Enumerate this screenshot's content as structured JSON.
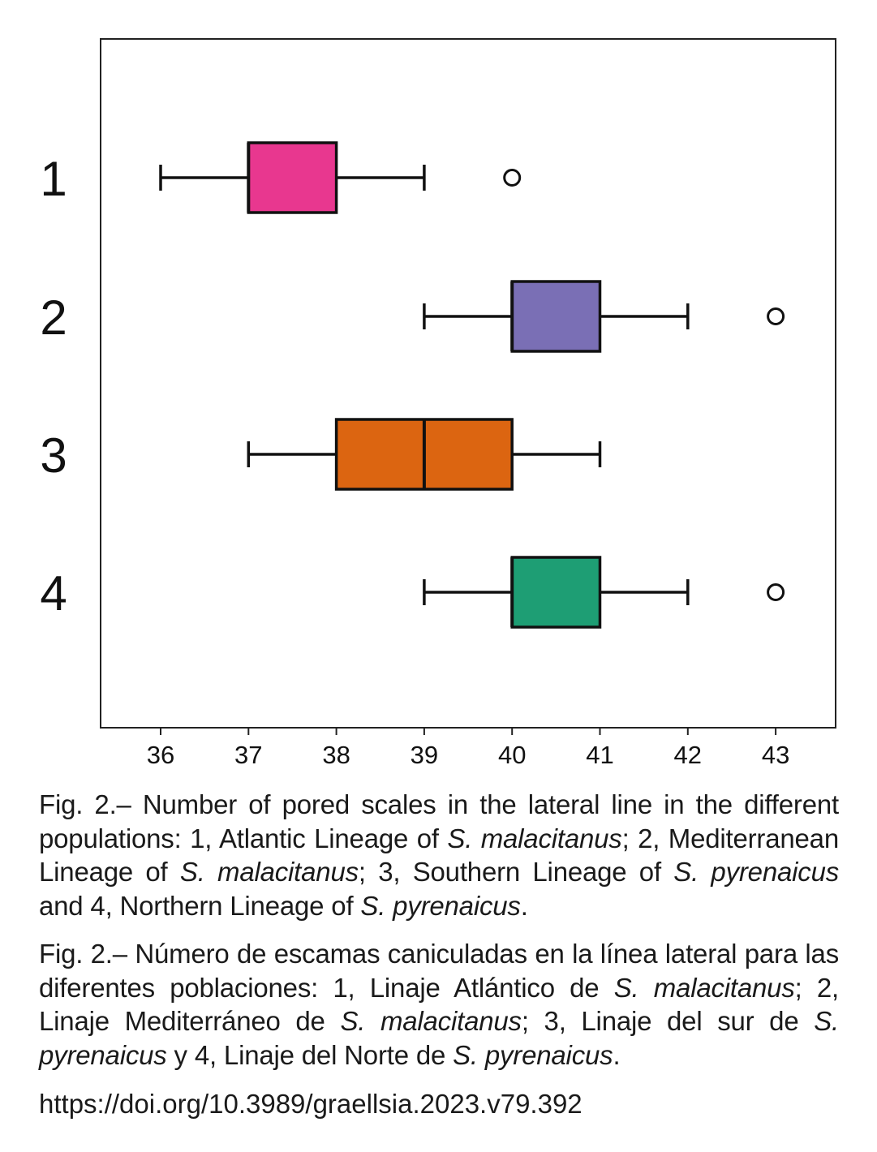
{
  "chart_data": {
    "type": "boxplot",
    "orientation": "horizontal",
    "title": "",
    "xlabel": "",
    "ylabel": "",
    "xlim": [
      35.3,
      43.7
    ],
    "xticks": [
      36,
      37,
      38,
      39,
      40,
      41,
      42,
      43
    ],
    "grid": false,
    "categories": [
      "1",
      "2",
      "3",
      "4"
    ],
    "series": [
      {
        "category": "1",
        "color": "#e8378f",
        "whisker_low": 36,
        "q1": 37,
        "median": 37,
        "q3": 38,
        "whisker_high": 39,
        "outliers": [
          40
        ]
      },
      {
        "category": "2",
        "color": "#7a6fb5",
        "whisker_low": 39,
        "q1": 40,
        "median": 40,
        "q3": 41,
        "whisker_high": 42,
        "outliers": [
          43
        ]
      },
      {
        "category": "3",
        "color": "#dc6511",
        "whisker_low": 37,
        "q1": 38,
        "median": 39,
        "q3": 40,
        "whisker_high": 41,
        "outliers": []
      },
      {
        "category": "4",
        "color": "#1e9e74",
        "whisker_low": 39,
        "q1": 40,
        "median": 40,
        "q3": 41,
        "whisker_high": 42,
        "outliers": [
          43
        ]
      }
    ]
  },
  "caption_en": {
    "t1": "Fig. 2.– Number of pored scales in the lateral line in the different populations: 1, Atlantic Lineage of ",
    "i1": "S. malacitanus",
    "t2": "; 2, Mediterranean Lineage of ",
    "i2": "S. malacitanus",
    "t3": "; 3, Southern Lineage of ",
    "i3": "S. pyrenaicus",
    "t4": " and 4, Northern Lineage of ",
    "i4": "S. pyrenaicus",
    "t5": "."
  },
  "caption_es": {
    "t1": "Fig. 2.– Número de escamas caniculadas en la línea lateral para las diferentes poblaciones: 1, Linaje Atlántico de ",
    "i1": "S. malacitanus",
    "t2": "; 2, Linaje Mediterráneo de ",
    "i2": "S. malacitanus",
    "t3": "; 3, Linaje del sur de ",
    "i3": "S. pyrenaicus",
    "t4": " y 4, Linaje del Norte de ",
    "i4": "S. pyrenaicus",
    "t5": "."
  },
  "doi": "https://doi.org/10.3989/graellsia.2023.v79.392"
}
